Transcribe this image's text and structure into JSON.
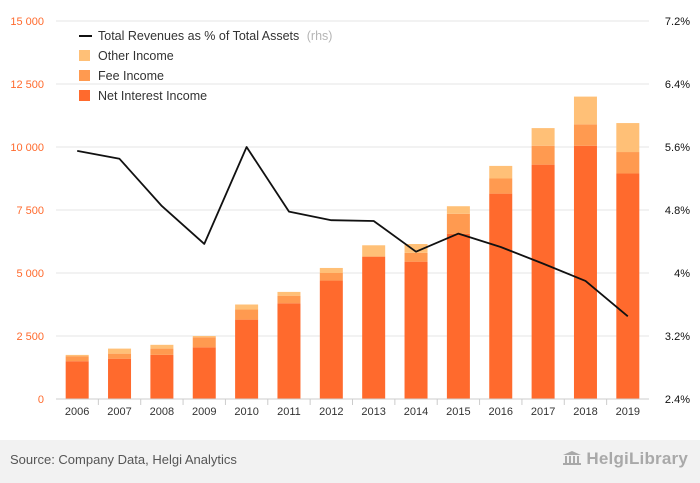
{
  "chart_data": {
    "type": "bar",
    "stacked": true,
    "categories": [
      "2006",
      "2007",
      "2008",
      "2009",
      "2010",
      "2011",
      "2012",
      "2013",
      "2014",
      "2015",
      "2016",
      "2017",
      "2018",
      "2019"
    ],
    "series": [
      {
        "name": "Net Interest Income",
        "color": "#ff6a2d",
        "values": [
          1500,
          1600,
          1750,
          2050,
          3150,
          3800,
          4700,
          5650,
          5450,
          6550,
          8150,
          9300,
          10050,
          8950
        ]
      },
      {
        "name": "Fee Income",
        "color": "#ff9a50",
        "values": [
          200,
          200,
          250,
          400,
          400,
          300,
          300,
          0,
          350,
          800,
          600,
          750,
          850,
          850
        ]
      },
      {
        "name": "Other Income",
        "color": "#ffc077",
        "values": [
          50,
          200,
          150,
          50,
          200,
          150,
          200,
          450,
          350,
          300,
          500,
          700,
          1100,
          1150
        ]
      }
    ],
    "line": {
      "name": "Total Revenues as % of Total Assets",
      "name_suffix": "(rhs)",
      "color": "#111111",
      "values": [
        5.55,
        5.45,
        4.85,
        4.37,
        5.6,
        4.78,
        4.67,
        4.66,
        4.27,
        4.5,
        4.33,
        4.12,
        3.9,
        3.45
      ]
    },
    "y_left": {
      "min": 0,
      "max": 15000,
      "ticks": [
        "0",
        "2 500",
        "5 000",
        "7 500",
        "10 000",
        "12 500",
        "15 000"
      ],
      "color": "#ff6a2d"
    },
    "y_right": {
      "min": 2.4,
      "max": 7.2,
      "ticks": [
        "2.4%",
        "3.2%",
        "4%",
        "4.8%",
        "5.6%",
        "6.4%",
        "7.2%"
      ],
      "color": "#111111"
    },
    "grid": true,
    "legend": "top-left"
  },
  "footer": {
    "source": "Source: Company Data, Helgi Analytics",
    "logo": "HelgiLibrary"
  }
}
